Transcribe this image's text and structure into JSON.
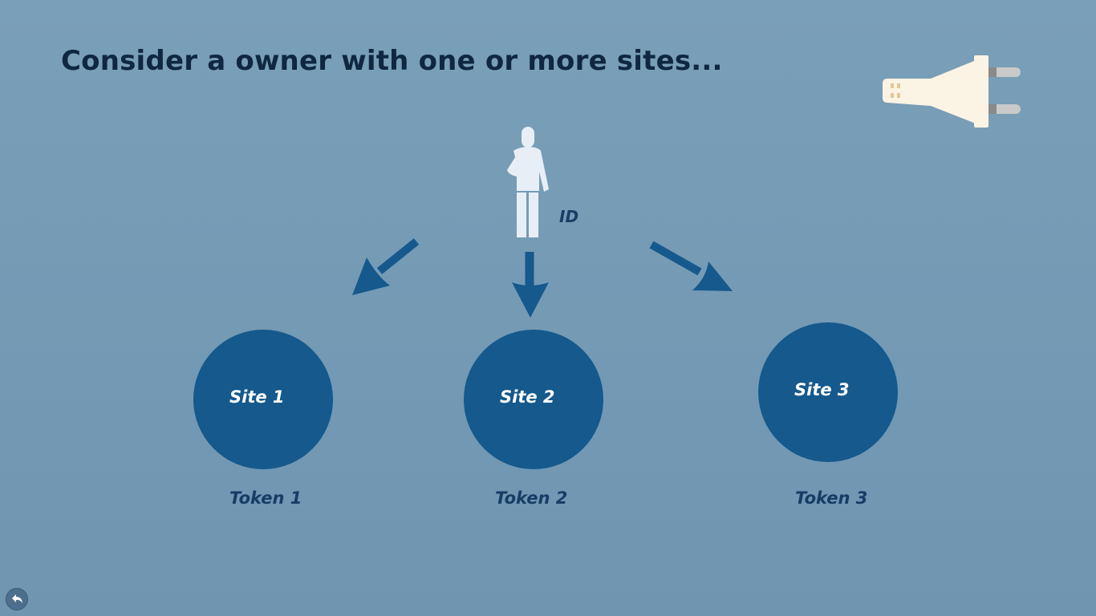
{
  "title": "Consider a owner with one or more sites...",
  "owner": {
    "id_label": "ID"
  },
  "sites": [
    {
      "name": "Site 1",
      "token": "Token 1"
    },
    {
      "name": "Site 2",
      "token": "Token 2"
    },
    {
      "name": "Site 3",
      "token": "Token 3"
    }
  ],
  "icons": {
    "plug": "plug-icon",
    "person": "person-icon",
    "back": "back-arrow-icon"
  },
  "colors": {
    "background": "#759bb5",
    "title": "#0f2740",
    "site_fill": "#15598d",
    "site_text": "#ffffff",
    "token_text": "#173d66",
    "arrow": "#15598d",
    "person": "#e8eef6",
    "plug_body": "#fbf3e3"
  }
}
